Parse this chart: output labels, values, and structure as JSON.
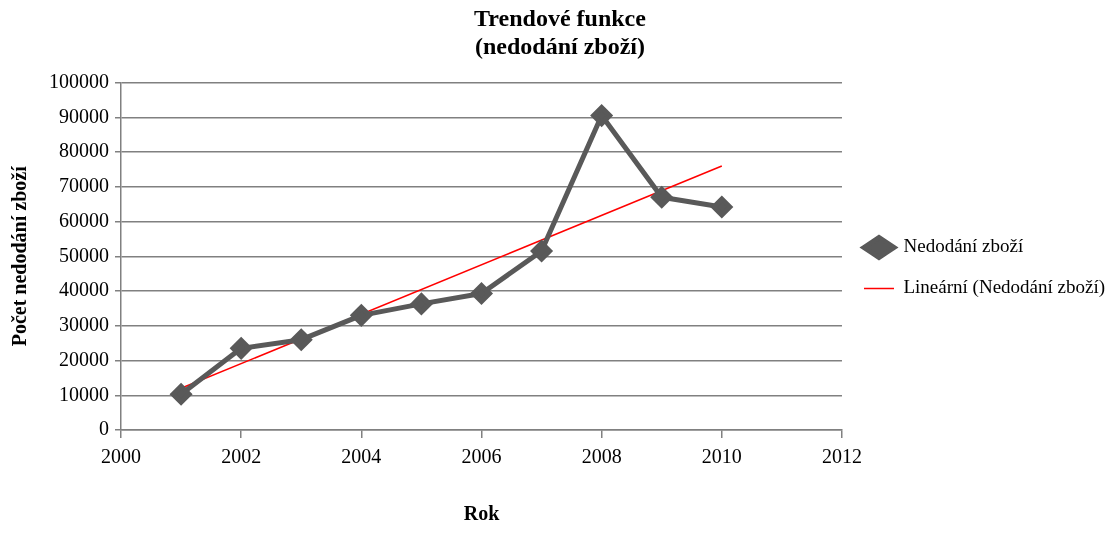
{
  "chart_data": {
    "type": "line",
    "title": "Trendové funkce\n(nedodání zboží)",
    "xlabel": "Rok",
    "ylabel": "Počet nedodání zboží",
    "xlim": [
      2000,
      2012
    ],
    "xticks": [
      2000,
      2002,
      2004,
      2006,
      2008,
      2010,
      2012
    ],
    "ylim": [
      0,
      100000
    ],
    "yticks": [
      0,
      10000,
      20000,
      30000,
      40000,
      50000,
      60000,
      70000,
      80000,
      90000,
      100000
    ],
    "grid": "y",
    "legend": "right",
    "series": [
      {
        "name": "Nedodání zboží",
        "color": "#595959",
        "marker": "diamond",
        "x": [
          2001,
          2002,
          2003,
          2004,
          2005,
          2006,
          2007,
          2008,
          2009,
          2010
        ],
        "values": [
          10300,
          23500,
          26000,
          33000,
          36300,
          39300,
          51500,
          90500,
          67000,
          64200
        ]
      },
      {
        "name": "Lineární (Nedodání zboží)",
        "color": "#ff0000",
        "marker": "none",
        "x": [
          2001,
          2010
        ],
        "values": [
          12000,
          76000
        ]
      }
    ]
  }
}
